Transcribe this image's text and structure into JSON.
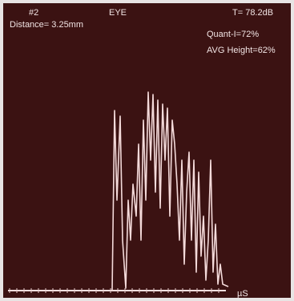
{
  "header": {
    "probe": "#2",
    "mode": "EYE",
    "gain": "T= 78.2dB",
    "distance": "Distance= 3.25mm",
    "quant": "Quant-I=72%",
    "avg_height": "AVG Height=62%"
  },
  "axis": {
    "unit": "µS"
  }
}
